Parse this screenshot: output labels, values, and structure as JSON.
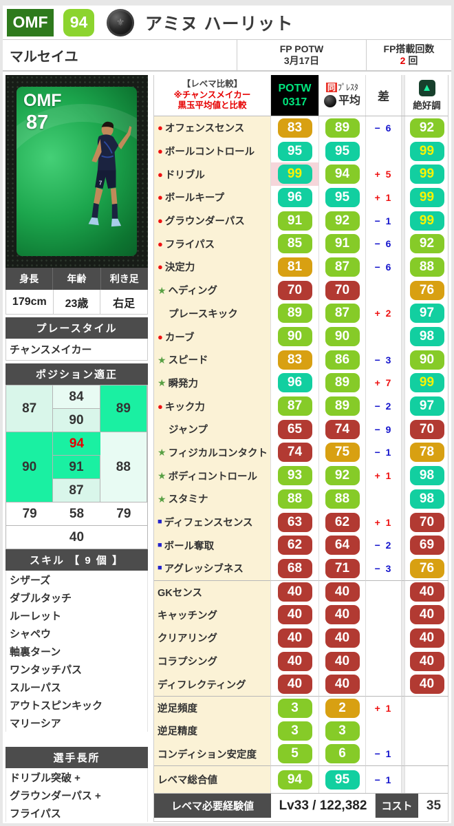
{
  "header": {
    "position": "OMF",
    "rating": "94",
    "name": "アミヌ ハーリット",
    "club": "マルセイユ",
    "card_type_line1": "FP POTW",
    "card_type_line2": "3月17日",
    "fp_label": "FP搭載回数",
    "fp_value": "2",
    "fp_suffix": " 回"
  },
  "card": {
    "position": "OMF",
    "rating": "87"
  },
  "profile": {
    "headers": [
      "身長",
      "年齢",
      "利き足"
    ],
    "values": [
      "179cm",
      "23歳",
      "右足"
    ]
  },
  "playstyle": {
    "title": "プレースタイル",
    "value": "チャンスメイカー"
  },
  "positions": {
    "title": "ポジション適正",
    "left": [
      {
        "v": "87",
        "tier": "mid",
        "span": 2
      },
      {
        "v": "90",
        "tier": "hi",
        "span": 3
      },
      {
        "v": "79",
        "tier": "white",
        "span": 1
      }
    ],
    "middle": [
      {
        "v": "84",
        "tier": "lite"
      },
      {
        "v": "90",
        "tier": "mid"
      },
      {
        "v": "94",
        "tier": "hi",
        "hot": true
      },
      {
        "v": "91",
        "tier": "hi"
      },
      {
        "v": "87",
        "tier": "mid"
      },
      {
        "v": "58",
        "tier": "white"
      }
    ],
    "right": [
      {
        "v": "89",
        "tier": "hi",
        "span": 2
      },
      {
        "v": "88",
        "tier": "lite",
        "span": 3
      },
      {
        "v": "79",
        "tier": "white",
        "span": 1
      }
    ],
    "bottom": {
      "v": "40",
      "tier": "white"
    }
  },
  "skills": {
    "title": "スキル 【 9 個 】",
    "items": [
      "シザーズ",
      "ダブルタッチ",
      "ルーレット",
      "シャペウ",
      "軸裏ターン",
      "ワンタッチパス",
      "スルーパス",
      "アウトスピンキック",
      "マリーシア"
    ]
  },
  "strengths": {
    "title": "選手長所",
    "items": [
      "ドリブル突破 +",
      "グラウンダーパス +",
      "フライパス"
    ]
  },
  "table": {
    "header": {
      "compare_line1": "【レベマ比較】",
      "compare_line2": "※チャンスメイカー",
      "compare_line3": "黒玉平均値と比較",
      "potw_line1": "POTW",
      "potw_line2": "0317",
      "same_prefix": "同",
      "same_text": "ﾌﾟﾚｽﾀ",
      "avg_text": "平均",
      "diff_label": "差",
      "best_label": "絶好調",
      "best_arrow": "▲"
    },
    "rows": [
      {
        "label": "オフェンスセンス",
        "icon": "dot",
        "grp": "main",
        "v1": [
          "83",
          "o"
        ],
        "v2": [
          "89",
          "g"
        ],
        "diff": [
          "− 6",
          "neg"
        ],
        "v3": [
          "92",
          "g"
        ]
      },
      {
        "label": "ボールコントロール",
        "icon": "dot",
        "grp": "main",
        "v1": [
          "95",
          "t"
        ],
        "v2": [
          "95",
          "t"
        ],
        "diff": null,
        "v3": [
          "99",
          "t",
          "y"
        ]
      },
      {
        "label": "ドリブル",
        "icon": "dot",
        "grp": "main",
        "hl": true,
        "v1": [
          "99",
          "t",
          "y"
        ],
        "v2": [
          "94",
          "g"
        ],
        "diff": [
          "+ 5",
          "pos"
        ],
        "v3": [
          "99",
          "t",
          "y"
        ]
      },
      {
        "label": "ボールキープ",
        "icon": "dot",
        "grp": "main",
        "v1": [
          "96",
          "t"
        ],
        "v2": [
          "95",
          "t"
        ],
        "diff": [
          "+ 1",
          "pos"
        ],
        "v3": [
          "99",
          "t",
          "y"
        ]
      },
      {
        "label": "グラウンダーパス",
        "icon": "dot",
        "grp": "main",
        "v1": [
          "91",
          "g"
        ],
        "v2": [
          "92",
          "g"
        ],
        "diff": [
          "− 1",
          "neg"
        ],
        "v3": [
          "99",
          "t",
          "y"
        ]
      },
      {
        "label": "フライパス",
        "icon": "dot",
        "grp": "main",
        "v1": [
          "85",
          "g"
        ],
        "v2": [
          "91",
          "g"
        ],
        "diff": [
          "− 6",
          "neg"
        ],
        "v3": [
          "92",
          "g"
        ]
      },
      {
        "label": "決定力",
        "icon": "dot",
        "grp": "main",
        "v1": [
          "81",
          "o"
        ],
        "v2": [
          "87",
          "g"
        ],
        "diff": [
          "− 6",
          "neg"
        ],
        "v3": [
          "88",
          "g"
        ]
      },
      {
        "label": "ヘディング",
        "icon": "star",
        "grp": "main",
        "v1": [
          "70",
          "r"
        ],
        "v2": [
          "70",
          "r"
        ],
        "diff": null,
        "v3": [
          "76",
          "o"
        ]
      },
      {
        "label": "プレースキック",
        "icon": "indent",
        "grp": "main",
        "v1": [
          "89",
          "g"
        ],
        "v2": [
          "87",
          "g"
        ],
        "diff": [
          "+ 2",
          "pos"
        ],
        "v3": [
          "97",
          "t"
        ]
      },
      {
        "label": "カーブ",
        "icon": "dot",
        "grp": "main",
        "v1": [
          "90",
          "g"
        ],
        "v2": [
          "90",
          "g"
        ],
        "diff": null,
        "v3": [
          "98",
          "t"
        ]
      },
      {
        "label": "スピード",
        "icon": "star",
        "grp": "main",
        "v1": [
          "83",
          "o"
        ],
        "v2": [
          "86",
          "g"
        ],
        "diff": [
          "− 3",
          "neg"
        ],
        "v3": [
          "90",
          "g"
        ]
      },
      {
        "label": "瞬発力",
        "icon": "star",
        "grp": "main",
        "v1": [
          "96",
          "t"
        ],
        "v2": [
          "89",
          "g"
        ],
        "diff": [
          "+ 7",
          "pos"
        ],
        "v3": [
          "99",
          "t",
          "y"
        ]
      },
      {
        "label": "キック力",
        "icon": "dot",
        "grp": "main",
        "v1": [
          "87",
          "g"
        ],
        "v2": [
          "89",
          "g"
        ],
        "diff": [
          "− 2",
          "neg"
        ],
        "v3": [
          "97",
          "t"
        ]
      },
      {
        "label": "ジャンプ",
        "icon": "indent",
        "grp": "main",
        "v1": [
          "65",
          "r"
        ],
        "v2": [
          "74",
          "r"
        ],
        "diff": [
          "− 9",
          "neg"
        ],
        "v3": [
          "70",
          "r"
        ]
      },
      {
        "label": "フィジカルコンタクト",
        "icon": "star",
        "grp": "main",
        "v1": [
          "74",
          "r"
        ],
        "v2": [
          "75",
          "o"
        ],
        "diff": [
          "− 1",
          "neg"
        ],
        "v3": [
          "78",
          "o"
        ]
      },
      {
        "label": "ボディコントロール",
        "icon": "star",
        "grp": "main",
        "v1": [
          "93",
          "g"
        ],
        "v2": [
          "92",
          "g"
        ],
        "diff": [
          "+ 1",
          "pos"
        ],
        "v3": [
          "98",
          "t"
        ]
      },
      {
        "label": "スタミナ",
        "icon": "star",
        "grp": "main",
        "v1": [
          "88",
          "g"
        ],
        "v2": [
          "88",
          "g"
        ],
        "diff": null,
        "v3": [
          "98",
          "t"
        ]
      },
      {
        "label": "ディフェンスセンス",
        "icon": "sq",
        "grp": "main",
        "v1": [
          "63",
          "r"
        ],
        "v2": [
          "62",
          "r"
        ],
        "diff": [
          "+ 1",
          "pos"
        ],
        "v3": [
          "70",
          "r"
        ]
      },
      {
        "label": "ボール奪取",
        "icon": "sq",
        "grp": "main",
        "v1": [
          "62",
          "r"
        ],
        "v2": [
          "64",
          "r"
        ],
        "diff": [
          "− 2",
          "neg"
        ],
        "v3": [
          "69",
          "r"
        ]
      },
      {
        "label": "アグレッシブネス",
        "icon": "sq",
        "grp": "main",
        "v1": [
          "68",
          "r"
        ],
        "v2": [
          "71",
          "r"
        ],
        "diff": [
          "− 3",
          "neg"
        ],
        "v3": [
          "76",
          "o"
        ]
      },
      {
        "label": "GKセンス",
        "icon": "none",
        "grp": "gk",
        "v1": [
          "40",
          "r"
        ],
        "v2": [
          "40",
          "r"
        ],
        "diff": null,
        "v3": [
          "40",
          "r"
        ]
      },
      {
        "label": "キャッチング",
        "icon": "none",
        "grp": "gk",
        "v1": [
          "40",
          "r"
        ],
        "v2": [
          "40",
          "r"
        ],
        "diff": null,
        "v3": [
          "40",
          "r"
        ]
      },
      {
        "label": "クリアリング",
        "icon": "none",
        "grp": "gk",
        "v1": [
          "40",
          "r"
        ],
        "v2": [
          "40",
          "r"
        ],
        "diff": null,
        "v3": [
          "40",
          "r"
        ]
      },
      {
        "label": "コラプシング",
        "icon": "none",
        "grp": "gk",
        "v1": [
          "40",
          "r"
        ],
        "v2": [
          "40",
          "r"
        ],
        "diff": null,
        "v3": [
          "40",
          "r"
        ]
      },
      {
        "label": "ディフレクティング",
        "icon": "none",
        "grp": "gk",
        "v1": [
          "40",
          "r"
        ],
        "v2": [
          "40",
          "r"
        ],
        "diff": null,
        "v3": [
          "40",
          "r"
        ]
      },
      {
        "label": "逆足頻度",
        "icon": "none",
        "grp": "foot",
        "v1": [
          "3",
          "g"
        ],
        "v2": [
          "2",
          "o"
        ],
        "diff": [
          "+ 1",
          "pos"
        ],
        "v3": null
      },
      {
        "label": "逆足精度",
        "icon": "none",
        "grp": "foot",
        "v1": [
          "3",
          "g"
        ],
        "v2": [
          "3",
          "g"
        ],
        "diff": null,
        "v3": null
      },
      {
        "label": "コンディション安定度",
        "icon": "none",
        "grp": "foot",
        "v1": [
          "5",
          "g"
        ],
        "v2": [
          "6",
          "g"
        ],
        "diff": [
          "− 1",
          "neg"
        ],
        "v3": null
      },
      {
        "label": "レベマ総合値",
        "icon": "none",
        "grp": "total",
        "v1": [
          "94",
          "g"
        ],
        "v2": [
          "95",
          "t"
        ],
        "diff": [
          "− 1",
          "neg"
        ],
        "v3": null
      }
    ],
    "footer": {
      "label": "レベマ必要経験値",
      "exp": "Lv33 / 122,382",
      "cost_label": "コスト",
      "cost_value": "35"
    }
  },
  "colors": {
    "teal_badge": "#12cfa0",
    "green_badge": "#86cb28",
    "orange_badge": "#d8a012",
    "red_badge": "#b23a32",
    "badge_99_text": "#faf303",
    "diff_plus": "#ee1111",
    "diff_minus": "#1313cc",
    "position_badge_bg": "#2e7a1c",
    "rating_badge_bg": "#8cd42f",
    "potw_text": "#00e67d",
    "label_column_bg": "#fbf2d6",
    "highlight_cell_bg": "#f5d6da",
    "position_hi": "#1af0a2",
    "position_mid": "#d9f6ea"
  }
}
